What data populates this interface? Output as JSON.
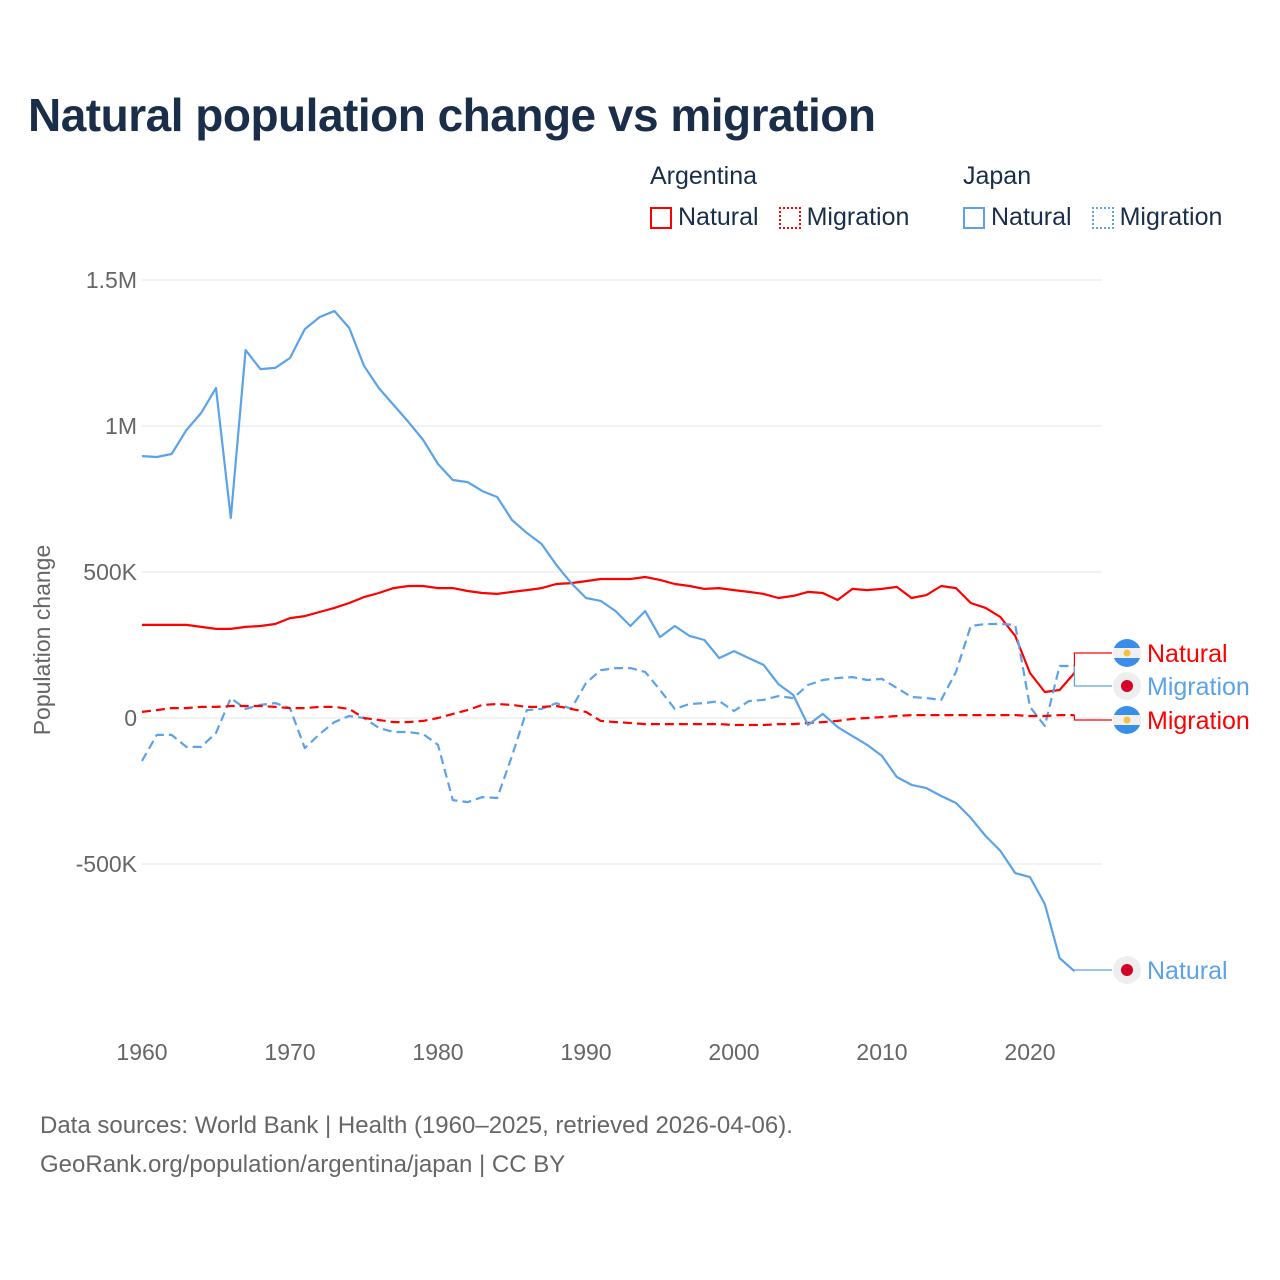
{
  "chart_data": {
    "type": "line",
    "title": "Natural population change vs migration",
    "ylabel": "Population change",
    "xlabel": "",
    "xlim": [
      1960,
      2025
    ],
    "ylim": [
      -1000,
      1600
    ],
    "y_unit": "thousands",
    "x_ticks": [
      1960,
      1970,
      1980,
      1990,
      2000,
      2010,
      2020
    ],
    "x_tick_labels": [
      "1960",
      "1970",
      "1980",
      "1990",
      "2000",
      "2010",
      "2020"
    ],
    "y_ticks": [
      1500,
      1000,
      500,
      0,
      -500
    ],
    "y_tick_labels": [
      "1.5M",
      "1M",
      "500K",
      "0",
      "-500K"
    ],
    "grid": true,
    "legend_placement": "top-right",
    "legend_groups": [
      {
        "title": "Argentina",
        "items": [
          "Natural",
          "Migration"
        ]
      },
      {
        "title": "Japan",
        "items": [
          "Natural",
          "Migration"
        ]
      }
    ],
    "x_start": 1960,
    "series": [
      {
        "name": "Argentina Natural",
        "country": "Argentina",
        "kind": "Natural",
        "color": "#ff0000",
        "dash": "solid",
        "end_label": "Natural",
        "flag": "argentina",
        "values": [
          319,
          319,
          319,
          319,
          312,
          305,
          305,
          312,
          315,
          322,
          342,
          349,
          363,
          377,
          394,
          414,
          428,
          445,
          452,
          452,
          445,
          445,
          435,
          428,
          425,
          432,
          438,
          445,
          459,
          462,
          469,
          476,
          476,
          476,
          483,
          473,
          459,
          452,
          442,
          445,
          438,
          432,
          425,
          411,
          418,
          432,
          428,
          404,
          442,
          438,
          442,
          449,
          411,
          421,
          452,
          445,
          394,
          377,
          346,
          281,
          154,
          89,
          96,
          154
        ]
      },
      {
        "name": "Japan Migration",
        "country": "Japan",
        "kind": "Migration",
        "color": "#5ba3e8",
        "dash": "dashed",
        "end_label": "Migration",
        "flag": "japan",
        "values": [
          -147,
          -58,
          -58,
          -99,
          -99,
          -51,
          68,
          31,
          45,
          51,
          34,
          -103,
          -55,
          -14,
          7,
          0,
          -34,
          -48,
          -48,
          -55,
          -92,
          -281,
          -288,
          -271,
          -274,
          -130,
          27,
          31,
          51,
          31,
          120,
          164,
          171,
          171,
          158,
          96,
          31,
          48,
          51,
          58,
          24,
          58,
          62,
          75,
          68,
          113,
          130,
          137,
          140,
          130,
          134,
          103,
          72,
          68,
          62,
          158,
          315,
          322,
          322,
          319,
          38,
          -27,
          178,
          178
        ]
      },
      {
        "name": "Argentina Migration",
        "country": "Argentina",
        "kind": "Migration",
        "color": "#ff0000",
        "dash": "dashed",
        "end_label": "Migration",
        "flag": "argentina",
        "values": [
          21,
          27,
          34,
          34,
          38,
          38,
          41,
          41,
          41,
          38,
          34,
          34,
          38,
          38,
          31,
          0,
          -7,
          -14,
          -14,
          -10,
          0,
          14,
          27,
          45,
          48,
          45,
          38,
          38,
          41,
          31,
          21,
          -10,
          -14,
          -17,
          -21,
          -21,
          -21,
          -21,
          -21,
          -21,
          -24,
          -24,
          -24,
          -21,
          -21,
          -17,
          -14,
          -10,
          -3,
          0,
          3,
          7,
          10,
          10,
          10,
          10,
          10,
          10,
          10,
          10,
          7,
          7,
          10,
          10
        ]
      },
      {
        "name": "Japan Natural",
        "country": "Japan",
        "kind": "Natural",
        "color": "#5ba3e8",
        "dash": "solid",
        "end_label": "Natural",
        "flag": "japan",
        "values": [
          897,
          894,
          904,
          986,
          1045,
          1130,
          685,
          1260,
          1195,
          1199,
          1233,
          1332,
          1373,
          1394,
          1336,
          1206,
          1130,
          1072,
          1014,
          952,
          870,
          815,
          808,
          777,
          757,
          678,
          634,
          596,
          524,
          462,
          411,
          401,
          366,
          315,
          366,
          277,
          315,
          281,
          267,
          205,
          229,
          205,
          182,
          116,
          79,
          -24,
          14,
          -31,
          -62,
          -92,
          -130,
          -202,
          -229,
          -240,
          -267,
          -291,
          -342,
          -404,
          -455,
          -531,
          -545,
          -637,
          -822,
          -867
        ]
      }
    ]
  },
  "footer": {
    "line1": "Data sources: World Bank | Health (1960–2025, retrieved 2026-04-06).",
    "line2": "GeoRank.org/population/argentina/japan | CC BY"
  }
}
